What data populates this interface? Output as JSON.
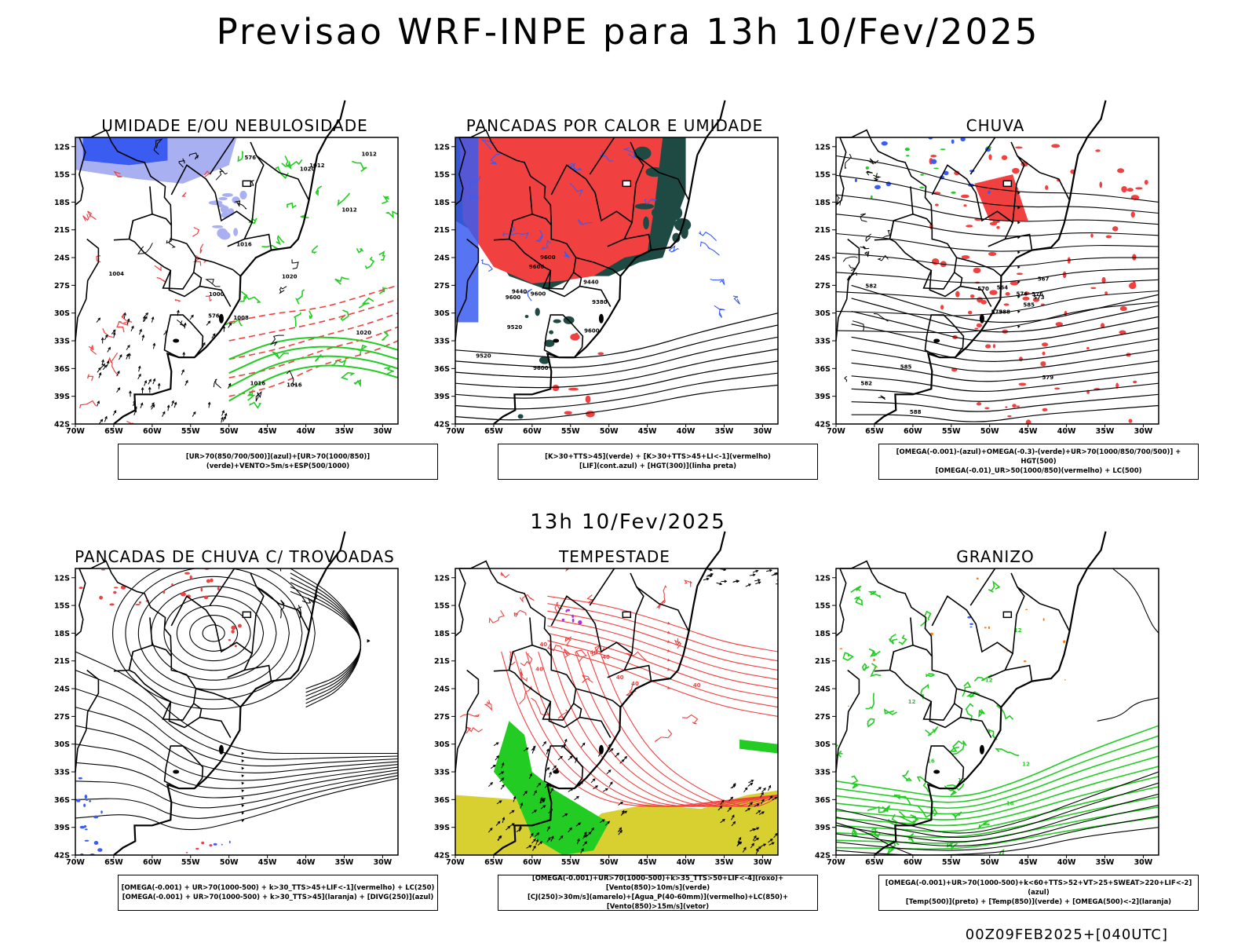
{
  "title": "Previsao WRF-INPE  para 13h 10/Fev/2025",
  "mid_title": "13h 10/Fev/2025",
  "footer": "00Z09FEB2025+[040UTC]",
  "axes": {
    "lat_labels": [
      "12S",
      "15S",
      "18S",
      "21S",
      "24S",
      "27S",
      "30S",
      "33S",
      "36S",
      "39S",
      "42S"
    ],
    "lon_labels": [
      "70W",
      "65W",
      "60W",
      "55W",
      "50W",
      "45W",
      "40W",
      "35W",
      "30W"
    ]
  },
  "colors": {
    "humid_blue": "#3a5cf0",
    "humid_light": "#a9b0f2",
    "green": "#22cc22",
    "red": "#f04040",
    "teal": "#1f4a44",
    "yellow": "#d8cf30",
    "purple": "#b030d0",
    "orange": "#f08020",
    "black": "#000000"
  },
  "panels": [
    {
      "id": "umidade",
      "title": "UMIDADE E/OU NEBULOSIDADE",
      "legend": [
        "[UR>70(850/700/500)](azul)+[UR>70(1000/850)](verde)+VENTO>5m/s+ESP(500/1000)"
      ],
      "contour_labels": [
        "1012",
        "1012",
        "1012",
        "1016",
        "1016",
        "1020",
        "1000",
        "1008",
        "1004",
        "1020",
        "1020",
        "1016",
        "576",
        "576"
      ]
    },
    {
      "id": "pancadas-calor",
      "title": "PANCADAS POR CALOR E UMIDADE",
      "legend": [
        "[K>30+TTS>45](verde) + [K>30+TTS>45+LI<-1](vermelho)",
        "[LIF](cont.azul) + [HGT(300)](linha preta)"
      ],
      "contour_labels": [
        "9600",
        "9600",
        "9600",
        "9600",
        "9520",
        "9440",
        "9380",
        "9600",
        "9520",
        "9440",
        "9600"
      ]
    },
    {
      "id": "chuva",
      "title": "CHUVA",
      "legend": [
        "[OMEGA(-0.001)-(azul)+OMEGA(-0.3)-(verde)+UR>70(1000/850/700/500)] + HGT(500)",
        "[OMEGA(-0.01)_UR>50(1000/850)(vermelho) + LC(500)"
      ],
      "contour_labels": [
        "588",
        "588",
        "585",
        "582",
        "579",
        "576",
        "573",
        "570",
        "567",
        "564",
        "585",
        "582",
        "579",
        "576"
      ]
    },
    {
      "id": "trovoadas",
      "title": "PANCADAS DE CHUVA C/ TROVOADAS",
      "legend": [
        "[OMEGA(-0.001) + UR>70(1000-500) + k>30_TTS>45+LIF<-1](vermelho) + LC(250)",
        "[OMEGA(-0.001) + UR>70(1000-500) + k>30_TTS>45](laranja) + [DIVG(250)](azul)"
      ],
      "contour_labels": []
    },
    {
      "id": "tempestade",
      "title": "TEMPESTADE",
      "legend": [
        "[OMEGA(-0.001)+UR>70(1000-500)+k>35_TTS>50+LIF<-4](roxo)+[Vento(850)>10m/s](verde)",
        "[CJ(250)>30m/s](amarelo)+[Agua_P(40-60mm)](vermelho)+LC(850)+[Vento(850)>15m/s](vetor)"
      ],
      "contour_labels": [
        "40",
        "40",
        "40",
        "40",
        "40",
        "40",
        "40"
      ]
    },
    {
      "id": "granizo",
      "title": "GRANIZO",
      "legend": [
        "[OMEGA(-0.001)+UR>70(1000-500)+k<60+TTS>52+VT>25+SWEAT>220+LIF<-2](azul)",
        "[Temp(500)](preto) + [Temp(850)](verde) + [OMEGA(500)<-2](laranja)"
      ],
      "contour_labels": [
        "16",
        "16",
        "12",
        "12",
        "12",
        "12",
        "12"
      ]
    }
  ]
}
